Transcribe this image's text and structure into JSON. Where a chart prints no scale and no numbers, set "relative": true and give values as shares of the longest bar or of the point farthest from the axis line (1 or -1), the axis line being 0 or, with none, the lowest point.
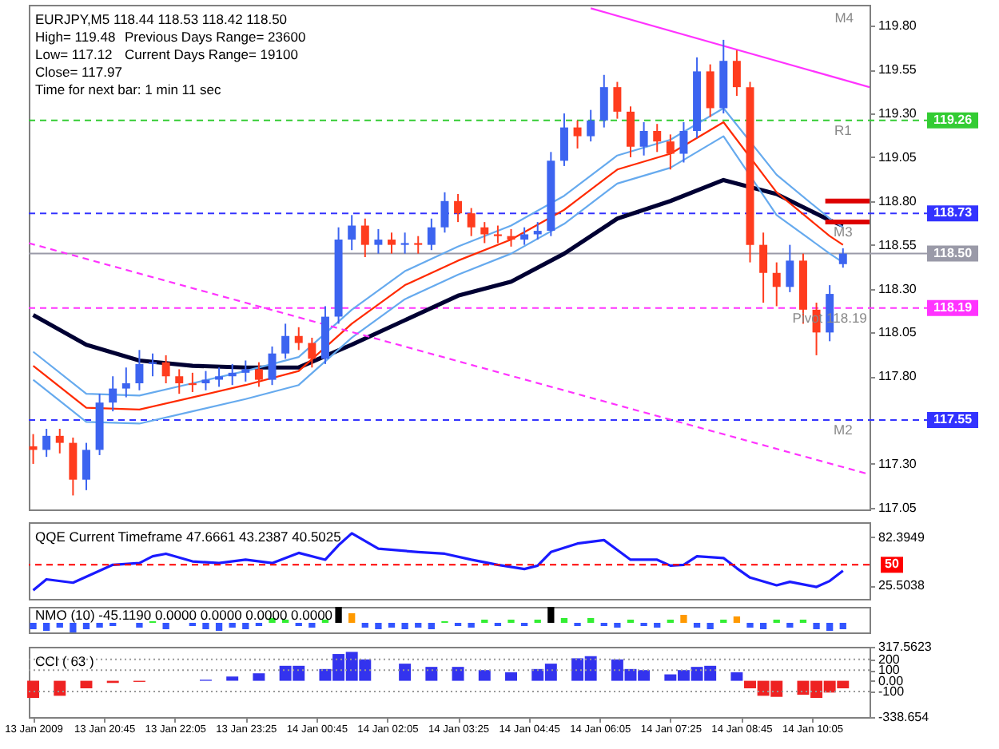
{
  "chart_data": [
    {
      "type": "candlestick",
      "title": "EURJPY,M5  118.44 118.53 118.42 118.50",
      "annotations": [
        "High= 119.48",
        "Previous Days Range= 23600",
        "Low= 117.12",
        "Current Days Range= 19100",
        "Close= 117.97",
        "Time for next bar: 1 min 11 sec",
        "M4",
        {
          "text": "R1",
          "x": "2009-01-14T10:40",
          "y": 119.26
        },
        {
          "text": "M3",
          "x": "2009-01-14T10:40",
          "y": 118.68
        },
        {
          "text": "Pivot  118.19",
          "x": "2009-01-14T10:25",
          "y": 118.19
        },
        {
          "text": "M2",
          "x": "2009-01-14T10:40",
          "y": 117.55
        }
      ],
      "x": [
        "2009-01-13T19:25",
        "2009-01-13T19:40",
        "2009-01-13T19:55",
        "2009-01-13T20:10",
        "2009-01-13T20:25",
        "2009-01-13T20:40",
        "2009-01-13T20:55",
        "2009-01-13T21:10",
        "2009-01-13T21:25",
        "2009-01-13T21:40",
        "2009-01-13T21:55",
        "2009-01-13T22:10",
        "2009-01-13T22:25",
        "2009-01-13T22:40",
        "2009-01-13T22:55",
        "2009-01-13T23:10",
        "2009-01-13T23:25",
        "2009-01-13T23:40",
        "2009-01-13T23:55",
        "2009-01-14T00:10",
        "2009-01-14T00:25",
        "2009-01-14T00:40",
        "2009-01-14T00:55",
        "2009-01-14T01:10",
        "2009-01-14T01:25",
        "2009-01-14T01:40",
        "2009-01-14T01:55",
        "2009-01-14T02:10",
        "2009-01-14T02:25",
        "2009-01-14T02:40",
        "2009-01-14T02:55",
        "2009-01-14T03:10",
        "2009-01-14T03:25",
        "2009-01-14T03:40",
        "2009-01-14T03:55",
        "2009-01-14T04:10",
        "2009-01-14T04:25",
        "2009-01-14T04:40",
        "2009-01-14T04:55",
        "2009-01-14T05:10",
        "2009-01-14T05:25",
        "2009-01-14T05:40",
        "2009-01-14T05:55",
        "2009-01-14T06:10",
        "2009-01-14T06:25",
        "2009-01-14T06:40",
        "2009-01-14T06:55",
        "2009-01-14T07:10",
        "2009-01-14T07:25",
        "2009-01-14T07:40",
        "2009-01-14T07:55",
        "2009-01-14T08:10",
        "2009-01-14T08:25",
        "2009-01-14T08:40",
        "2009-01-14T08:55",
        "2009-01-14T09:10",
        "2009-01-14T09:25",
        "2009-01-14T09:40",
        "2009-01-14T09:55",
        "2009-01-14T10:10",
        "2009-01-14T10:25",
        "2009-01-14T10:40"
      ],
      "ohlc": [
        [
          117.4,
          117.47,
          117.3,
          117.38
        ],
        [
          117.38,
          117.5,
          117.34,
          117.46
        ],
        [
          117.46,
          117.5,
          117.36,
          117.42
        ],
        [
          117.42,
          117.45,
          117.12,
          117.21
        ],
        [
          117.21,
          117.42,
          117.15,
          117.38
        ],
        [
          117.38,
          117.7,
          117.35,
          117.65
        ],
        [
          117.65,
          117.8,
          117.6,
          117.73
        ],
        [
          117.73,
          117.85,
          117.68,
          117.76
        ],
        [
          117.76,
          117.95,
          117.72,
          117.87
        ],
        [
          117.87,
          117.93,
          117.8,
          117.88
        ],
        [
          117.88,
          117.92,
          117.76,
          117.8
        ],
        [
          117.8,
          117.84,
          117.7,
          117.76
        ],
        [
          117.76,
          117.82,
          117.71,
          117.75
        ],
        [
          117.76,
          117.83,
          117.72,
          117.78
        ],
        [
          117.78,
          117.85,
          117.74,
          117.8
        ],
        [
          117.8,
          117.87,
          117.75,
          117.82
        ],
        [
          117.82,
          117.89,
          117.77,
          117.84
        ],
        [
          117.84,
          117.88,
          117.74,
          117.78
        ],
        [
          117.78,
          117.97,
          117.75,
          117.93
        ],
        [
          117.93,
          118.1,
          117.9,
          118.03
        ],
        [
          118.03,
          118.08,
          117.95,
          117.99
        ],
        [
          117.99,
          118.02,
          117.85,
          117.9
        ],
        [
          117.9,
          118.2,
          117.87,
          118.14
        ],
        [
          118.14,
          118.65,
          118.1,
          118.58
        ],
        [
          118.58,
          118.72,
          118.52,
          118.66
        ],
        [
          118.66,
          118.7,
          118.48,
          118.55
        ],
        [
          118.55,
          118.64,
          118.5,
          118.58
        ],
        [
          118.58,
          118.62,
          118.5,
          118.55
        ],
        [
          118.55,
          118.62,
          118.5,
          118.56
        ],
        [
          118.56,
          118.6,
          118.5,
          118.55
        ],
        [
          118.55,
          118.7,
          118.52,
          118.65
        ],
        [
          118.65,
          118.85,
          118.62,
          118.8
        ],
        [
          118.8,
          118.84,
          118.68,
          118.73
        ],
        [
          118.73,
          118.76,
          118.6,
          118.65
        ],
        [
          118.65,
          118.68,
          118.56,
          118.61
        ],
        [
          118.61,
          118.66,
          118.56,
          118.6
        ],
        [
          118.6,
          118.64,
          118.54,
          118.58
        ],
        [
          118.58,
          118.65,
          118.55,
          118.61
        ],
        [
          118.61,
          118.68,
          118.58,
          118.63
        ],
        [
          118.63,
          119.08,
          118.6,
          119.03
        ],
        [
          119.03,
          119.3,
          119.0,
          119.22
        ],
        [
          119.22,
          119.26,
          119.1,
          119.17
        ],
        [
          119.17,
          119.32,
          119.14,
          119.26
        ],
        [
          119.26,
          119.52,
          119.22,
          119.45
        ],
        [
          119.45,
          119.48,
          119.27,
          119.31
        ],
        [
          119.31,
          119.34,
          119.05,
          119.11
        ],
        [
          119.11,
          119.25,
          119.06,
          119.2
        ],
        [
          119.2,
          119.24,
          119.08,
          119.14
        ],
        [
          119.14,
          119.18,
          118.98,
          119.07
        ],
        [
          119.07,
          119.25,
          119.02,
          119.2
        ],
        [
          119.2,
          119.62,
          119.16,
          119.54
        ],
        [
          119.54,
          119.58,
          119.28,
          119.33
        ],
        [
          119.33,
          119.72,
          119.3,
          119.6
        ],
        [
          119.6,
          119.66,
          119.4,
          119.45
        ],
        [
          119.45,
          119.48,
          118.45,
          118.55
        ],
        [
          118.55,
          118.62,
          118.22,
          118.39
        ],
        [
          118.39,
          118.45,
          118.2,
          118.31
        ],
        [
          118.31,
          118.55,
          118.28,
          118.46
        ],
        [
          118.46,
          118.5,
          118.1,
          118.18
        ],
        [
          118.18,
          118.22,
          117.92,
          118.05
        ],
        [
          118.05,
          118.32,
          118.0,
          118.27
        ],
        [
          118.44,
          118.53,
          118.42,
          118.5
        ]
      ],
      "colors": [
        "#ff3c1e",
        "#3c64f0",
        "#ff3c1e",
        "#ff3c1e",
        "#3c64f0",
        "#3c64f0",
        "#3c64f0",
        "#3c64f0",
        "#3c64f0",
        "#3c64f0",
        "#ff3c1e",
        "#ff3c1e",
        "#ff3c1e",
        "#3c64f0",
        "#3c64f0",
        "#3c64f0",
        "#3c64f0",
        "#ff3c1e",
        "#3c64f0",
        "#3c64f0",
        "#ff3c1e",
        "#ff3c1e",
        "#3c64f0",
        "#3c64f0",
        "#3c64f0",
        "#ff3c1e",
        "#3c64f0",
        "#ff3c1e",
        "#3c64f0",
        "#ff3c1e",
        "#3c64f0",
        "#3c64f0",
        "#ff3c1e",
        "#ff3c1e",
        "#ff3c1e",
        "#ff3c1e",
        "#ff3c1e",
        "#3c64f0",
        "#3c64f0",
        "#3c64f0",
        "#3c64f0",
        "#ff3c1e",
        "#3c64f0",
        "#3c64f0",
        "#ff3c1e",
        "#ff3c1e",
        "#3c64f0",
        "#ff3c1e",
        "#ff3c1e",
        "#3c64f0",
        "#3c64f0",
        "#ff3c1e",
        "#3c64f0",
        "#ff3c1e",
        "#ff3c1e",
        "#ff3c1e",
        "#ff3c1e",
        "#3c64f0",
        "#ff3c1e",
        "#ff3c1e",
        "#3c64f0",
        "#3c64f0"
      ],
      "series": [
        {
          "type": "line",
          "color": "#000033",
          "x": [
            "2009-01-13T19:25",
            "2009-01-13T20:25",
            "2009-01-13T21:25",
            "2009-01-13T22:25",
            "2009-01-13T23:25",
            "2009-01-14T00:25",
            "2009-01-14T01:25",
            "2009-01-14T02:25",
            "2009-01-14T03:25",
            "2009-01-14T04:25",
            "2009-01-14T05:25",
            "2009-01-14T06:25",
            "2009-01-14T07:25",
            "2009-01-14T08:25",
            "2009-01-14T09:25",
            "2009-01-14T10:25",
            "2009-01-14T10:40"
          ],
          "values": [
            118.15,
            117.98,
            117.89,
            117.86,
            117.85,
            117.85,
            117.98,
            118.12,
            118.26,
            118.34,
            118.5,
            118.7,
            118.8,
            118.92,
            118.84,
            118.69,
            118.66
          ]
        },
        {
          "type": "line",
          "color": "#66aaee",
          "x": [
            "2009-01-13T19:25",
            "2009-01-13T20:25",
            "2009-01-13T21:25",
            "2009-01-13T22:25",
            "2009-01-13T23:25",
            "2009-01-14T00:25",
            "2009-01-14T01:25",
            "2009-01-14T02:25",
            "2009-01-14T03:25",
            "2009-01-14T04:25",
            "2009-01-14T05:25",
            "2009-01-14T06:25",
            "2009-01-14T07:25",
            "2009-01-14T08:25",
            "2009-01-14T09:25",
            "2009-01-14T10:25",
            "2009-01-14T10:40"
          ],
          "values": [
            117.94,
            117.7,
            117.69,
            117.76,
            117.83,
            117.91,
            118.18,
            118.4,
            118.54,
            118.66,
            118.83,
            119.06,
            119.15,
            119.33,
            118.95,
            118.7,
            118.65
          ]
        },
        {
          "type": "line",
          "color": "#66aaee",
          "x": [
            "2009-01-13T19:25",
            "2009-01-13T20:25",
            "2009-01-13T21:25",
            "2009-01-13T22:25",
            "2009-01-13T23:25",
            "2009-01-14T00:25",
            "2009-01-14T01:25",
            "2009-01-14T02:25",
            "2009-01-14T03:25",
            "2009-01-14T04:25",
            "2009-01-14T05:25",
            "2009-01-14T06:25",
            "2009-01-14T07:25",
            "2009-01-14T08:25",
            "2009-01-14T09:25",
            "2009-01-14T10:25",
            "2009-01-14T10:40"
          ],
          "values": [
            117.78,
            117.54,
            117.53,
            117.6,
            117.67,
            117.75,
            118.02,
            118.24,
            118.38,
            118.5,
            118.67,
            118.9,
            118.99,
            119.17,
            118.72,
            118.5,
            118.45
          ]
        },
        {
          "type": "line",
          "color": "#ff2a00",
          "x": [
            "2009-01-13T19:25",
            "2009-01-13T20:25",
            "2009-01-13T21:25",
            "2009-01-13T22:25",
            "2009-01-13T23:25",
            "2009-01-14T00:25",
            "2009-01-14T01:25",
            "2009-01-14T02:25",
            "2009-01-14T03:25",
            "2009-01-14T04:25",
            "2009-01-14T05:25",
            "2009-01-14T06:25",
            "2009-01-14T07:25",
            "2009-01-14T08:25",
            "2009-01-14T09:25",
            "2009-01-14T10:25",
            "2009-01-14T10:40"
          ],
          "values": [
            117.86,
            117.62,
            117.61,
            117.68,
            117.75,
            117.83,
            118.1,
            118.32,
            118.46,
            118.58,
            118.75,
            118.98,
            119.07,
            119.25,
            118.85,
            118.6,
            118.55
          ]
        },
        {
          "type": "line",
          "color": "#ff33ff",
          "x": [
            "2009-01-14T05:55",
            "2009-01-14T11:10"
          ],
          "values": [
            119.9,
            119.45
          ]
        },
        {
          "type": "line",
          "color": "#ff33ff",
          "line_style": "dashed",
          "x": [
            "2009-01-13T19:20",
            "2009-01-14T11:10"
          ],
          "values": [
            118.56,
            117.24
          ]
        },
        {
          "type": "line",
          "color": "#dd0000",
          "x": [
            "2009-01-14T10:20",
            "2009-01-14T11:10"
          ],
          "values": [
            118.8,
            118.8
          ]
        },
        {
          "type": "line",
          "color": "#dd0000",
          "x": [
            "2009-01-14T10:20",
            "2009-01-14T11:10"
          ],
          "values": [
            118.68,
            118.68
          ]
        }
      ],
      "ref_lines": [
        {
          "axis": "y",
          "value": 119.26,
          "label": "119.26",
          "color": "#33cc33",
          "line_style": "dashed"
        },
        {
          "axis": "y",
          "value": 118.73,
          "label": "118.73",
          "color": "#3333ff",
          "line_style": "dashed"
        },
        {
          "axis": "y",
          "value": 118.5,
          "label": "118.50",
          "color": "#9a9aa8",
          "line_style": "solid"
        },
        {
          "axis": "y",
          "value": 118.19,
          "label": "118.19",
          "color": "#ff33ff",
          "line_style": "dashed"
        },
        {
          "axis": "y",
          "value": 117.55,
          "label": "117.55",
          "color": "#3333ff",
          "line_style": "dashed"
        }
      ],
      "xlim": [
        "2009-01-13T19:20",
        "2009-01-14T11:10"
      ],
      "ylim": [
        117.04,
        119.92
      ],
      "yticks": [
        {
          "value": 117.05,
          "label": "117.05"
        },
        {
          "value": 117.3,
          "label": "117.30"
        },
        {
          "value": 117.8,
          "label": "117.80"
        },
        {
          "value": 118.05,
          "label": "118.05"
        },
        {
          "value": 118.3,
          "label": "118.30"
        },
        {
          "value": 118.55,
          "label": "118.55"
        },
        {
          "value": 118.8,
          "label": "118.80"
        },
        {
          "value": 119.05,
          "label": "119.05"
        },
        {
          "value": 119.3,
          "label": "119.30"
        },
        {
          "value": 119.55,
          "label": "119.55"
        },
        {
          "value": 119.8,
          "label": "119.80"
        }
      ],
      "tick_labels": "y",
      "grid": false
    },
    {
      "type": "line",
      "title": "QQE Current Timeframe 47.6661 43.2387 40.5025",
      "color": "#1a1aff",
      "x": [
        "2009-01-13T19:25",
        "2009-01-13T19:40",
        "2009-01-13T20:10",
        "2009-01-13T20:55",
        "2009-01-13T21:25",
        "2009-01-13T21:40",
        "2009-01-13T21:55",
        "2009-01-13T22:25",
        "2009-01-13T22:55",
        "2009-01-13T23:25",
        "2009-01-13T23:55",
        "2009-01-14T00:25",
        "2009-01-14T00:55",
        "2009-01-14T01:10",
        "2009-01-14T01:25",
        "2009-01-14T01:55",
        "2009-01-14T02:40",
        "2009-01-14T03:10",
        "2009-01-14T03:40",
        "2009-01-14T04:10",
        "2009-01-14T04:40",
        "2009-01-14T04:55",
        "2009-01-14T05:10",
        "2009-01-14T05:40",
        "2009-01-14T06:10",
        "2009-01-14T06:40",
        "2009-01-14T07:10",
        "2009-01-14T07:25",
        "2009-01-14T07:40",
        "2009-01-14T07:55",
        "2009-01-14T08:25",
        "2009-01-14T08:40",
        "2009-01-14T08:55",
        "2009-01-14T09:25",
        "2009-01-14T09:40",
        "2009-01-14T09:55",
        "2009-01-14T10:10",
        "2009-01-14T10:25",
        "2009-01-14T10:40"
      ],
      "values": [
        20,
        33,
        29,
        50,
        52,
        60,
        63,
        54,
        52,
        56,
        52,
        64,
        56,
        73,
        87,
        69,
        65,
        63,
        56,
        50,
        45,
        49,
        65,
        75,
        79,
        56,
        56,
        49,
        50,
        60,
        58,
        46,
        35,
        26,
        30,
        27,
        24,
        31,
        43
      ],
      "ref_lines": [
        {
          "axis": "y",
          "value": 50,
          "label": "50",
          "color": "#ff0000",
          "line_style": "dashed"
        }
      ],
      "xlim": [
        "2009-01-13T19:20",
        "2009-01-14T11:10"
      ],
      "ylim": [
        10,
        100
      ],
      "yticks": [
        82.3949,
        25.5038
      ],
      "tick_labels": "y",
      "grid": false
    },
    {
      "type": "bar",
      "title": "NMO (10) -45.1190 0.0000 0.0000 0.0000 0.0000",
      "relative": true,
      "x": [
        "2009-01-13T19:25",
        "2009-01-13T19:40",
        "2009-01-13T19:55",
        "2009-01-13T20:10",
        "2009-01-13T20:25",
        "2009-01-13T20:40",
        "2009-01-13T20:55",
        "2009-01-13T21:25",
        "2009-01-13T21:40",
        "2009-01-13T21:55",
        "2009-01-13T22:25",
        "2009-01-13T22:40",
        "2009-01-13T22:55",
        "2009-01-13T23:10",
        "2009-01-13T23:25",
        "2009-01-13T23:40",
        "2009-01-13T23:55",
        "2009-01-14T00:10",
        "2009-01-14T00:25",
        "2009-01-14T00:40",
        "2009-01-14T00:55",
        "2009-01-14T01:10",
        "2009-01-14T01:25",
        "2009-01-14T01:40",
        "2009-01-14T01:55",
        "2009-01-14T02:10",
        "2009-01-14T02:25",
        "2009-01-14T02:40",
        "2009-01-14T02:55",
        "2009-01-14T03:10",
        "2009-01-14T03:25",
        "2009-01-14T03:40",
        "2009-01-14T03:55",
        "2009-01-14T04:10",
        "2009-01-14T04:25",
        "2009-01-14T04:40",
        "2009-01-14T04:55",
        "2009-01-14T05:10",
        "2009-01-14T05:25",
        "2009-01-14T05:40",
        "2009-01-14T05:55",
        "2009-01-14T06:10",
        "2009-01-14T06:25",
        "2009-01-14T06:40",
        "2009-01-14T06:55",
        "2009-01-14T07:10",
        "2009-01-14T07:25",
        "2009-01-14T07:40",
        "2009-01-14T07:55",
        "2009-01-14T08:10",
        "2009-01-14T08:25",
        "2009-01-14T08:40",
        "2009-01-14T08:55",
        "2009-01-14T09:10",
        "2009-01-14T09:25",
        "2009-01-14T09:40",
        "2009-01-14T09:55",
        "2009-01-14T10:10",
        "2009-01-14T10:25",
        "2009-01-14T10:40"
      ],
      "values": [
        -0.4,
        -0.5,
        -0.3,
        -0.6,
        -0.4,
        -0.3,
        -0.2,
        -0.3,
        0.1,
        -0.4,
        -0.2,
        -0.4,
        -0.5,
        -0.3,
        -0.4,
        -0.2,
        0.3,
        0.2,
        -0.2,
        -0.3,
        0.2,
        1.0,
        0.6,
        -0.3,
        -0.4,
        -0.3,
        -0.4,
        -0.3,
        -0.4,
        0.1,
        -0.2,
        -0.3,
        0.2,
        -0.2,
        0.2,
        -0.2,
        0.2,
        1.0,
        0.3,
        -0.2,
        0.3,
        -0.2,
        -0.3,
        0.2,
        -0.2,
        -0.3,
        0.2,
        0.5,
        -0.3,
        -0.4,
        0.2,
        0.4,
        -0.3,
        -0.4,
        0.2,
        -0.3,
        0.2,
        -0.4,
        -0.5,
        -0.4
      ],
      "colors": [
        "#3355ff",
        "#3355ff",
        "#3355ff",
        "#3355ff",
        "#3355ff",
        "#3355ff",
        "#3355ff",
        "#3355ff",
        "#33ee33",
        "#3355ff",
        "#3355ff",
        "#3355ff",
        "#3355ff",
        "#3355ff",
        "#3355ff",
        "#3355ff",
        "#33ee33",
        "#33ee33",
        "#3355ff",
        "#3355ff",
        "#33ee33",
        "#000000",
        "#ff9900",
        "#3355ff",
        "#3355ff",
        "#3355ff",
        "#3355ff",
        "#3355ff",
        "#3355ff",
        "#33ee33",
        "#3355ff",
        "#3355ff",
        "#33ee33",
        "#3355ff",
        "#33ee33",
        "#3355ff",
        "#33ee33",
        "#000000",
        "#33ee33",
        "#3355ff",
        "#33ee33",
        "#3355ff",
        "#3355ff",
        "#33ee33",
        "#3355ff",
        "#3355ff",
        "#33ee33",
        "#ff9900",
        "#3355ff",
        "#3355ff",
        "#33ee33",
        "#ff9900",
        "#3355ff",
        "#3355ff",
        "#33ee33",
        "#3355ff",
        "#33ee33",
        "#3355ff",
        "#3355ff",
        "#3355ff"
      ],
      "xlim": [
        "2009-01-13T19:20",
        "2009-01-14T11:10"
      ],
      "tick_labels": false,
      "grid": false
    },
    {
      "type": "bar",
      "title": "CCI ( 63 )",
      "x": [
        "2009-01-13T19:25",
        "2009-01-13T19:55",
        "2009-01-13T20:25",
        "2009-01-13T20:55",
        "2009-01-13T21:25",
        "2009-01-13T22:40",
        "2009-01-13T23:10",
        "2009-01-13T23:40",
        "2009-01-14T00:10",
        "2009-01-14T00:25",
        "2009-01-14T00:55",
        "2009-01-14T01:10",
        "2009-01-14T01:25",
        "2009-01-14T01:40",
        "2009-01-14T02:25",
        "2009-01-14T02:55",
        "2009-01-14T03:25",
        "2009-01-14T03:55",
        "2009-01-14T04:25",
        "2009-01-14T04:55",
        "2009-01-14T05:10",
        "2009-01-14T05:40",
        "2009-01-14T05:55",
        "2009-01-14T06:25",
        "2009-01-14T06:40",
        "2009-01-14T06:55",
        "2009-01-14T07:25",
        "2009-01-14T07:40",
        "2009-01-14T07:55",
        "2009-01-14T08:10",
        "2009-01-14T08:40",
        "2009-01-14T08:55",
        "2009-01-14T09:10",
        "2009-01-14T09:25",
        "2009-01-14T09:55",
        "2009-01-14T10:10",
        "2009-01-14T10:25",
        "2009-01-14T10:40"
      ],
      "values": [
        -160,
        -140,
        -70,
        -20,
        -10,
        10,
        40,
        70,
        140,
        140,
        110,
        250,
        270,
        200,
        160,
        130,
        130,
        100,
        80,
        110,
        160,
        210,
        230,
        200,
        110,
        100,
        60,
        100,
        130,
        140,
        80,
        -70,
        -140,
        -150,
        -130,
        -160,
        -110,
        -70
      ],
      "colors": [
        "#ee2222",
        "#ee2222",
        "#ee2222",
        "#ee2222",
        "#ee2222",
        "#3333ee",
        "#3333ee",
        "#3333ee",
        "#3333ee",
        "#3333ee",
        "#3333ee",
        "#3333ee",
        "#3333ee",
        "#3333ee",
        "#3333ee",
        "#3333ee",
        "#3333ee",
        "#3333ee",
        "#3333ee",
        "#3333ee",
        "#3333ee",
        "#3333ee",
        "#3333ee",
        "#3333ee",
        "#3333ee",
        "#3333ee",
        "#3333ee",
        "#3333ee",
        "#3333ee",
        "#3333ee",
        "#3333ee",
        "#ee2222",
        "#ee2222",
        "#ee2222",
        "#ee2222",
        "#ee2222",
        "#ee2222",
        "#ee2222"
      ],
      "ref_lines": [
        {
          "axis": "y",
          "value": 200,
          "color": "#999999",
          "line_style": "dotted"
        },
        {
          "axis": "y",
          "value": 100,
          "color": "#999999",
          "line_style": "dotted"
        },
        {
          "axis": "y",
          "value": -100,
          "color": "#999999",
          "line_style": "dotted"
        }
      ],
      "xlim": [
        "2009-01-13T19:20",
        "2009-01-14T11:10"
      ],
      "ylim": [
        -338.654,
        317.5623
      ],
      "yticks": [
        {
          "value": 317.5623,
          "label": "317.5623"
        },
        200,
        100,
        {
          "value": 0,
          "label": "0.00"
        },
        -100,
        {
          "value": -338.654,
          "label": "-338.654"
        }
      ],
      "xticks": [
        {
          "value": "2009-01-13T19:25",
          "label": "13 Jan 2009"
        },
        {
          "value": "2009-01-13T20:45",
          "label": "13 Jan 20:45"
        },
        {
          "value": "2009-01-13T22:05",
          "label": "13 Jan 22:05"
        },
        {
          "value": "2009-01-13T23:25",
          "label": "13 Jan 23:25"
        },
        {
          "value": "2009-01-14T00:45",
          "label": "14 Jan 00:45"
        },
        {
          "value": "2009-01-14T02:05",
          "label": "14 Jan 02:05"
        },
        {
          "value": "2009-01-14T03:25",
          "label": "14 Jan 03:25"
        },
        {
          "value": "2009-01-14T04:45",
          "label": "14 Jan 04:45"
        },
        {
          "value": "2009-01-14T06:05",
          "label": "14 Jan 06:05"
        },
        {
          "value": "2009-01-14T07:25",
          "label": "14 Jan 07:25"
        },
        {
          "value": "2009-01-14T08:45",
          "label": "14 Jan 08:45"
        },
        {
          "value": "2009-01-14T10:05",
          "label": "14 Jan 10:05"
        }
      ],
      "grid": false
    }
  ]
}
